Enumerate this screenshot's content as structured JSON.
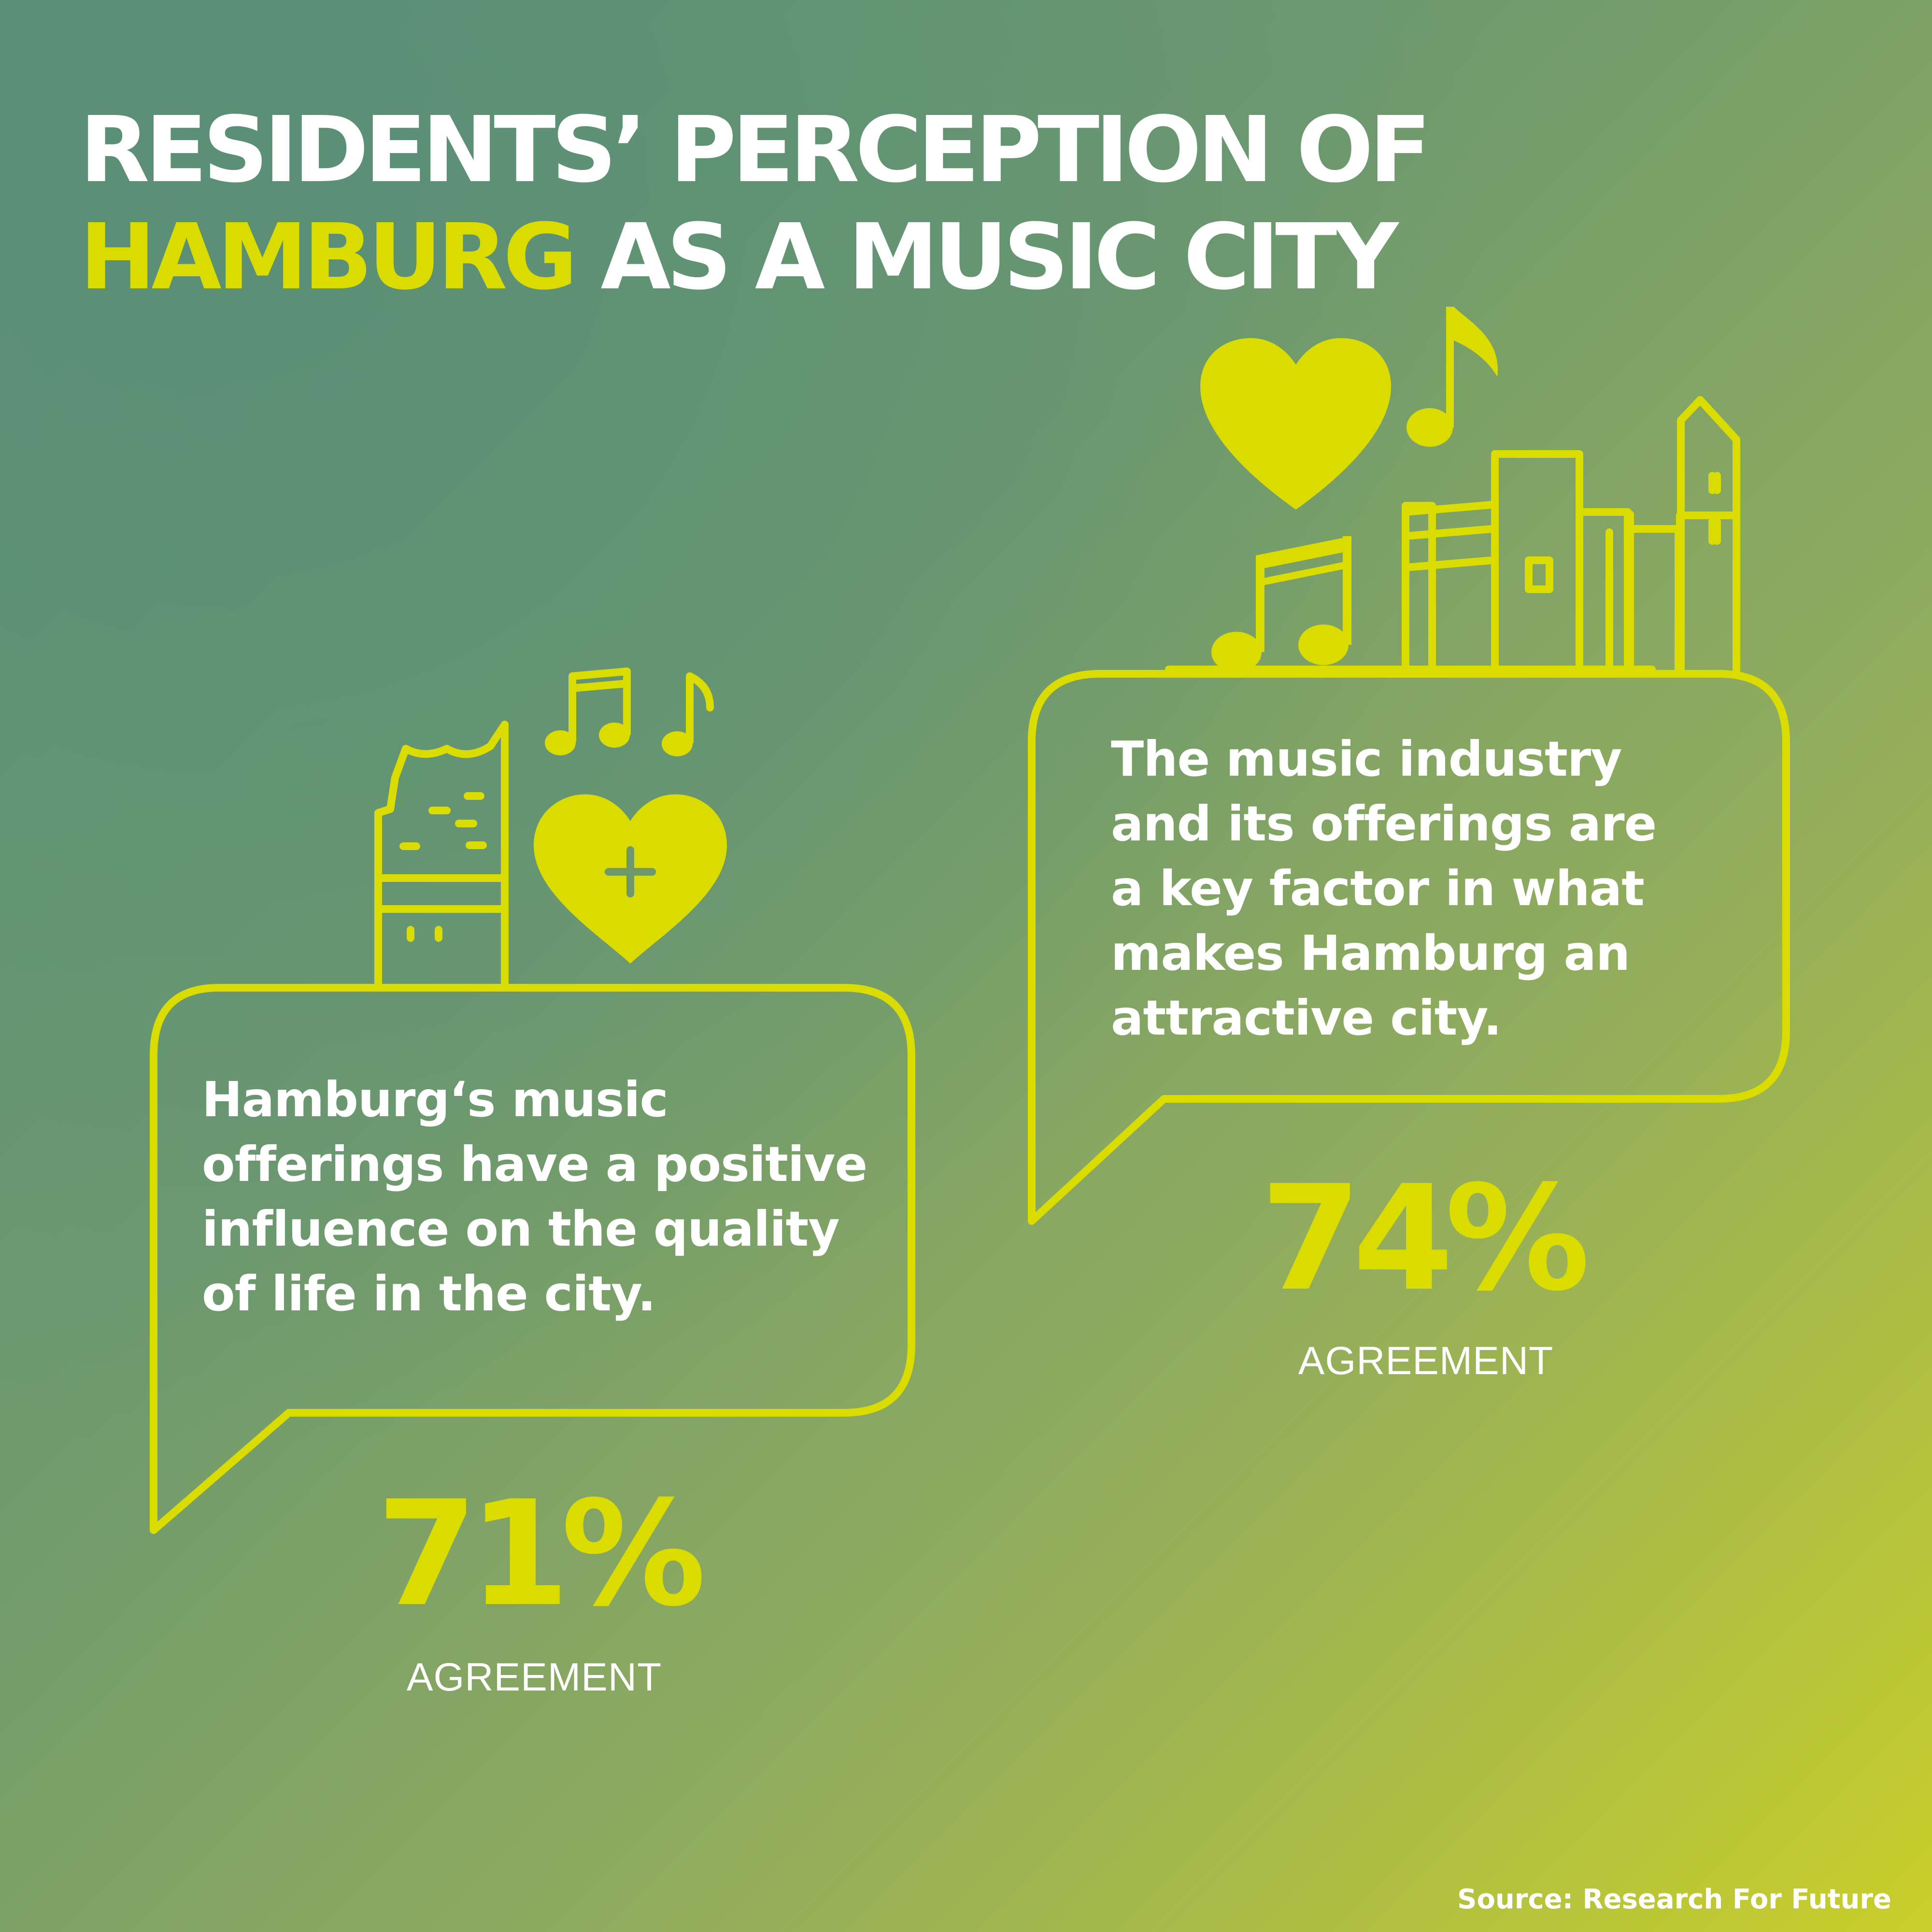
{
  "title": {
    "line1": "RESIDENTS’ PERCEPTION OF",
    "highlight": "HAMBURG",
    "line2_rest": " AS A MUSIC CITY"
  },
  "stats": [
    {
      "statement": "Hamburg‘s music\nofferings have a positive\ninfluence on the quality\nof life in the city.",
      "percent": "71%",
      "label": "AGREEMENT",
      "icons": [
        "elbphilharmonie-icon",
        "music-notes-icon",
        "heart-plus-icon"
      ]
    },
    {
      "statement": "The music industry\nand its offerings are\na key factor in what\nmakes Hamburg an\nattractive city.",
      "percent": "74%",
      "label": "AGREEMENT",
      "icons": [
        "heart-icon",
        "music-note-icon",
        "beamed-notes-icon",
        "city-buildings-icon"
      ]
    }
  ],
  "source": "Source: Research For Future",
  "colors": {
    "accent": "#dadc00",
    "text": "#ffffff",
    "background_start": "#5f9376",
    "background_end": "#c9cf2a"
  }
}
